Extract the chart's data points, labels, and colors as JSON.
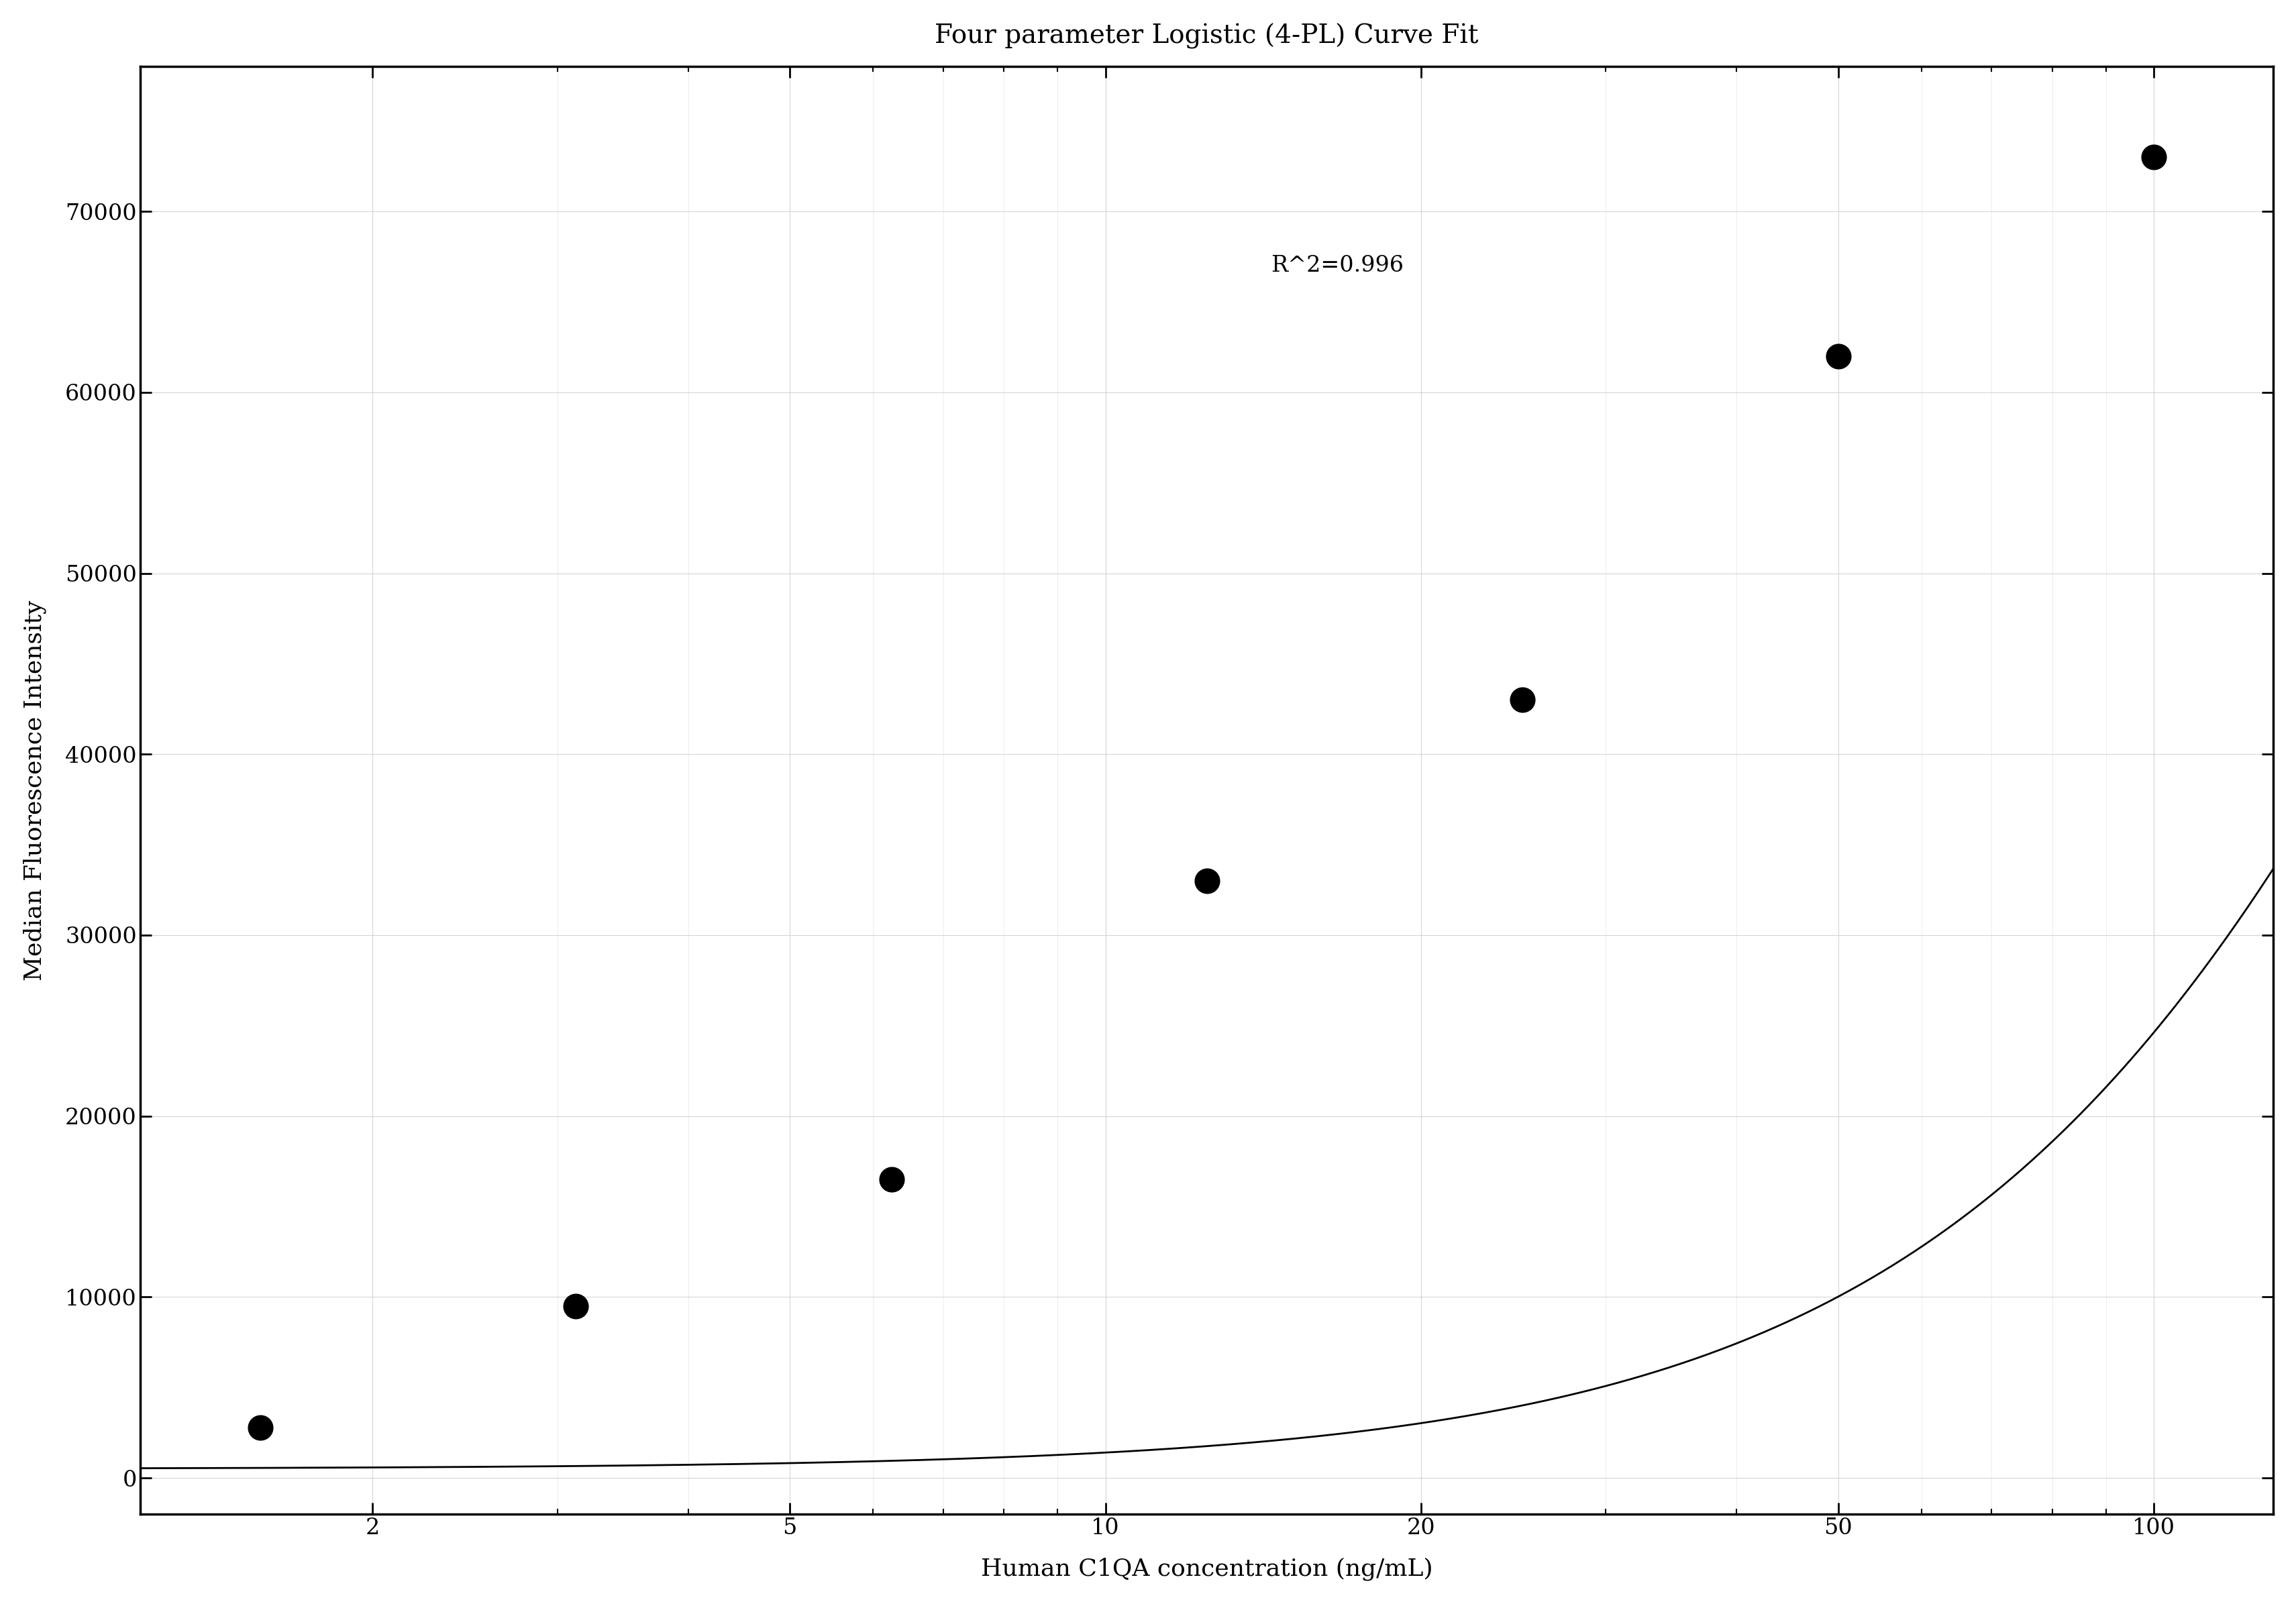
{
  "title": "Four parameter Logistic (4-PL) Curve Fit",
  "xlabel": "Human C1QA concentration (ng/mL)",
  "ylabel": "Median Fluorescence Intensity",
  "r_squared": "R^2=0.996",
  "data_x": [
    1.563,
    3.125,
    6.25,
    12.5,
    25,
    50,
    100
  ],
  "data_y": [
    2800,
    9500,
    16500,
    33000,
    43000,
    62000,
    73000
  ],
  "xlim": [
    1.2,
    130
  ],
  "ylim": [
    -2000,
    78000
  ],
  "yticks": [
    0,
    10000,
    20000,
    30000,
    40000,
    50000,
    60000,
    70000
  ],
  "xticks": [
    2,
    5,
    10,
    20,
    50,
    100
  ],
  "point_color": "#000000",
  "line_color": "#000000",
  "grid_color": "#cccccc",
  "background_color": "#ffffff",
  "title_fontsize": 28,
  "label_fontsize": 26,
  "tick_fontsize": 24,
  "annotation_fontsize": 24,
  "spine_linewidth": 2.5,
  "point_size": 100
}
